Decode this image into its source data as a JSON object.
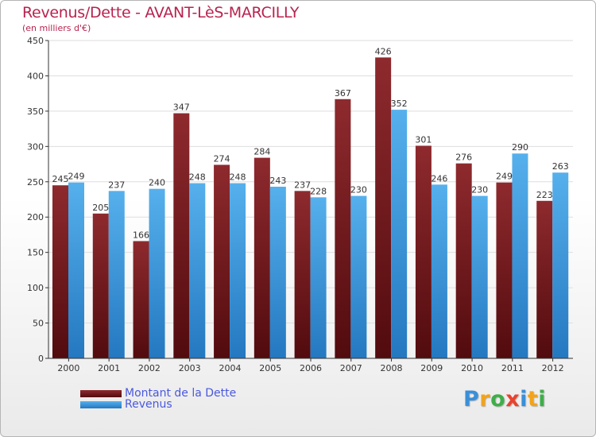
{
  "chart_data": {
    "type": "bar",
    "title": "Revenus/Dette - AVANT-LèS-MARCILLY",
    "subtitle": "(en milliers d'€)",
    "categories": [
      "2000",
      "2001",
      "2002",
      "2003",
      "2004",
      "2005",
      "2006",
      "2007",
      "2008",
      "2009",
      "2010",
      "2011",
      "2012"
    ],
    "series": [
      {
        "name": "Montant de la Dette",
        "color": "#7a1f22",
        "values": [
          245,
          205,
          166,
          347,
          274,
          284,
          237,
          367,
          426,
          301,
          276,
          249,
          223
        ]
      },
      {
        "name": "Revenus",
        "color": "#3c9ee0",
        "values": [
          249,
          237,
          240,
          248,
          248,
          243,
          228,
          230,
          352,
          246,
          230,
          290,
          263
        ]
      }
    ],
    "ylim": [
      0,
      450
    ],
    "yticks": [
      0,
      50,
      100,
      150,
      200,
      250,
      300,
      350,
      400,
      450
    ],
    "grid": true,
    "legend_position": "bottom-left"
  },
  "logo": {
    "letters": [
      "P",
      "r",
      "o",
      "x",
      "i",
      "t",
      "i"
    ]
  }
}
